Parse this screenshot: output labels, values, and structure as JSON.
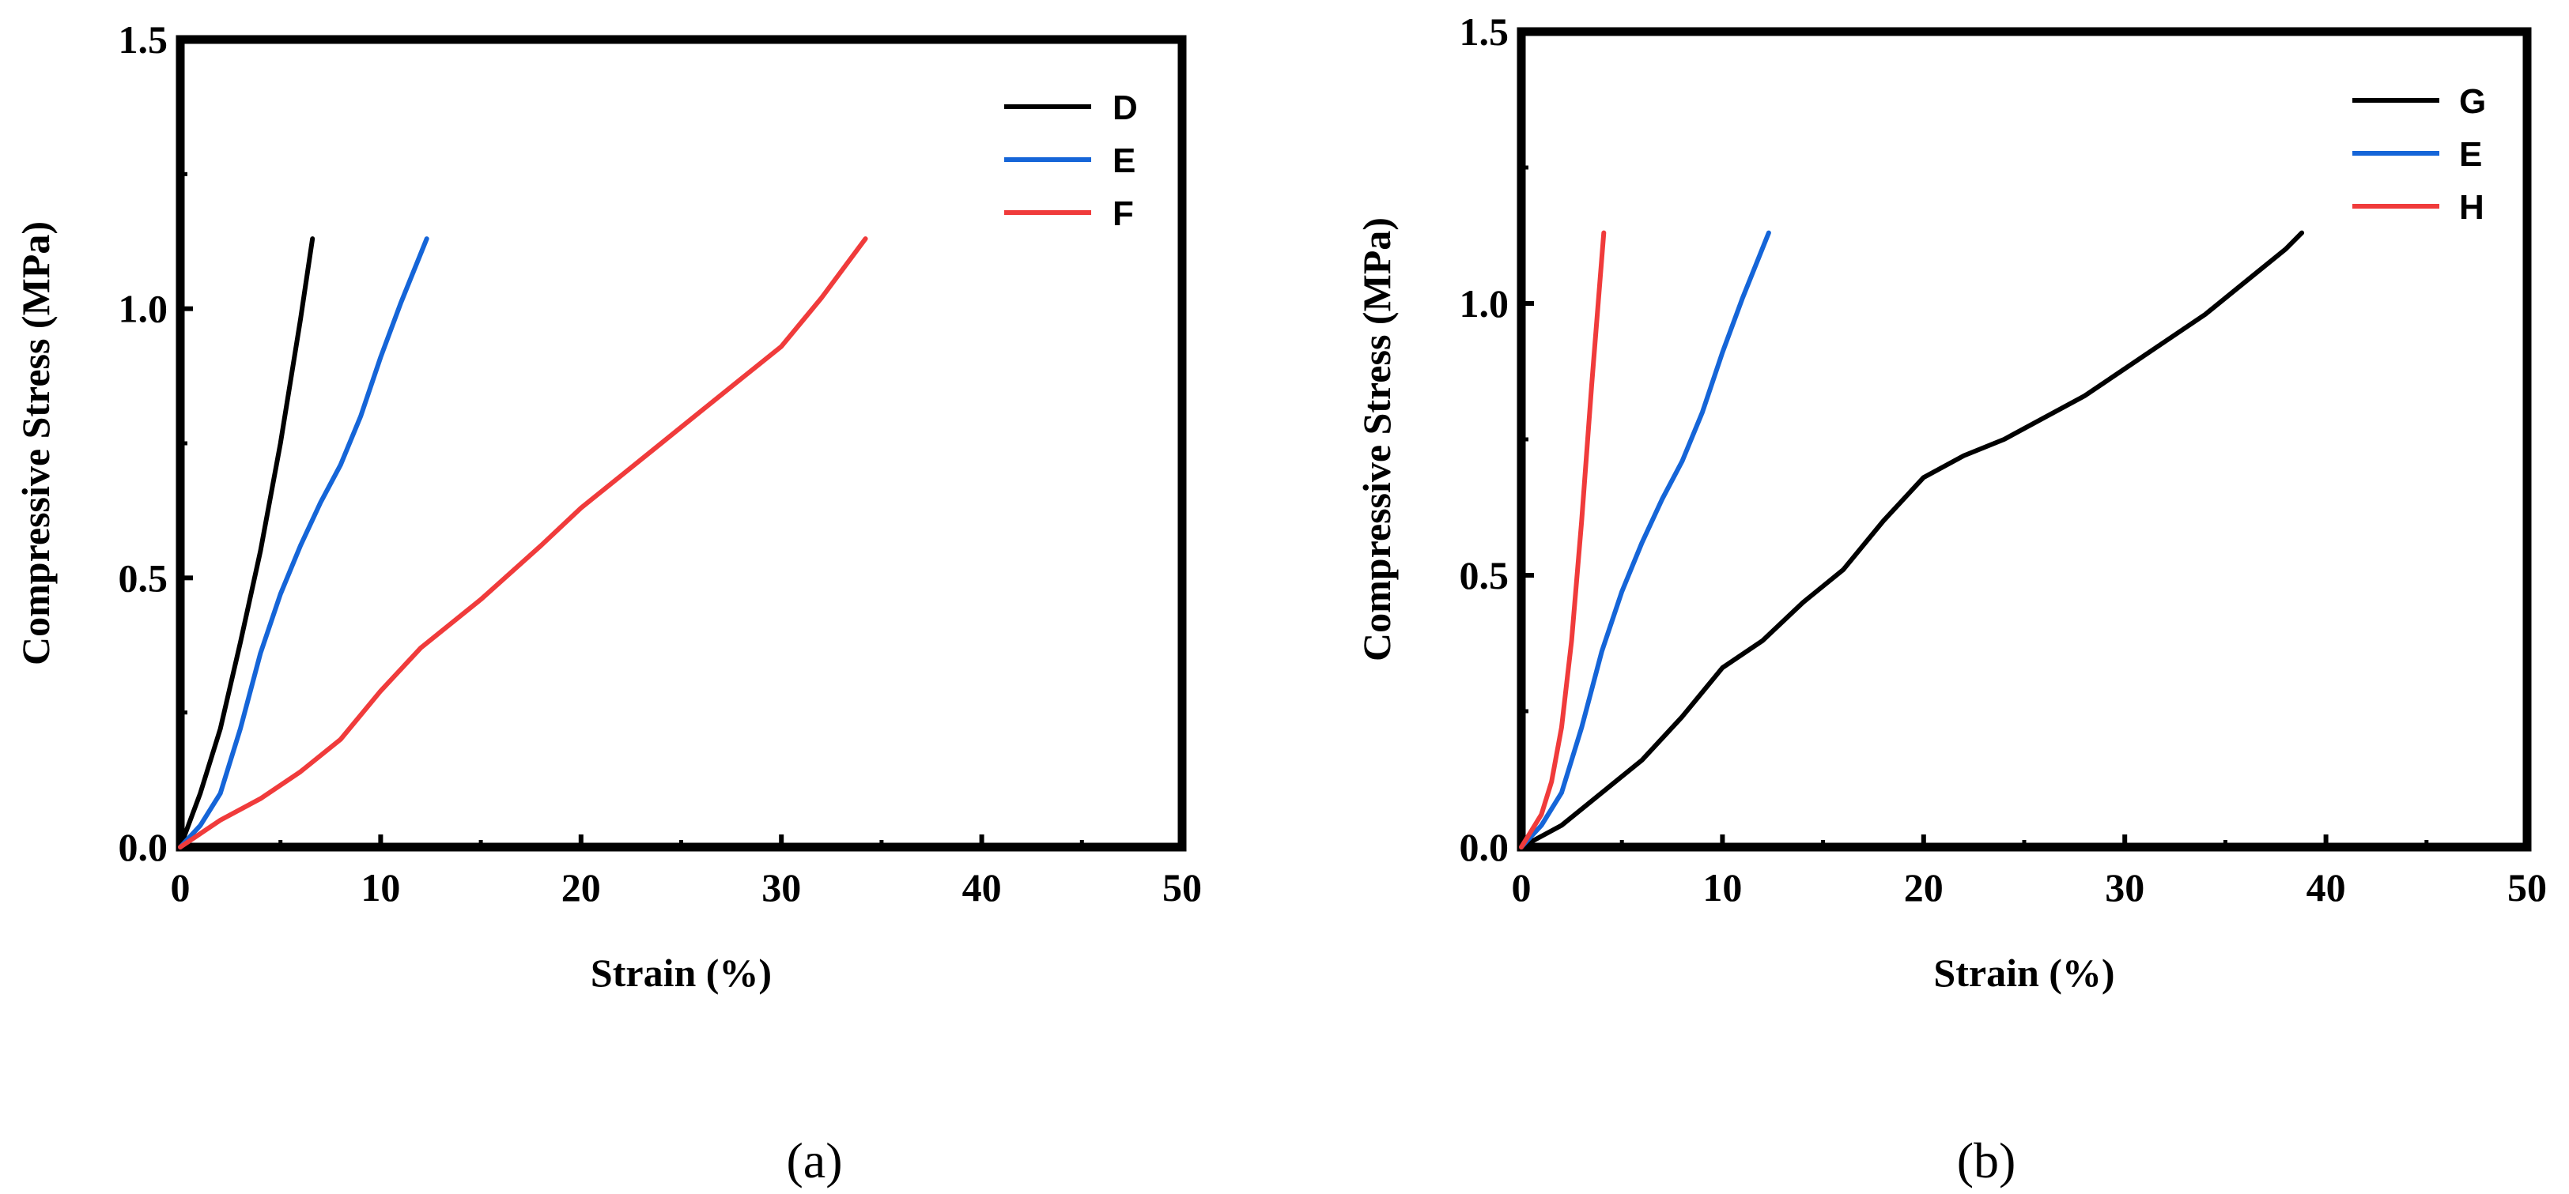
{
  "chart_data": [
    {
      "type": "line",
      "caption": "(a)",
      "xlabel": "Strain (%)",
      "ylabel": "Compressive Stress (MPa)",
      "xlim": [
        0,
        50
      ],
      "ylim": [
        0,
        1.5
      ],
      "xticks": [
        0,
        10,
        20,
        30,
        40,
        50
      ],
      "yticks": [
        0.0,
        0.5,
        1.0,
        1.5
      ],
      "xtick_labels": [
        "0",
        "10",
        "20",
        "30",
        "40",
        "50"
      ],
      "ytick_labels": [
        "0.0",
        "0.5",
        "1.0",
        "1.5"
      ],
      "legend_position": "top-right",
      "series": [
        {
          "name": "D",
          "color": "#000000",
          "x": [
            0,
            1,
            2,
            3,
            4,
            5,
            6,
            6.6
          ],
          "y": [
            0,
            0.1,
            0.22,
            0.38,
            0.55,
            0.75,
            0.98,
            1.13
          ]
        },
        {
          "name": "E",
          "color": "#1565d8",
          "x": [
            0,
            1,
            2,
            3,
            4,
            5,
            6,
            7,
            8,
            9,
            10,
            11,
            12.3
          ],
          "y": [
            0,
            0.04,
            0.1,
            0.22,
            0.36,
            0.47,
            0.56,
            0.64,
            0.71,
            0.8,
            0.91,
            1.01,
            1.13
          ]
        },
        {
          "name": "F",
          "color": "#f03b3b",
          "x": [
            0,
            2,
            4,
            6,
            8,
            10,
            12,
            15,
            18,
            20,
            22,
            24,
            26,
            28,
            30,
            32,
            34.2
          ],
          "y": [
            0,
            0.05,
            0.09,
            0.14,
            0.2,
            0.29,
            0.37,
            0.46,
            0.56,
            0.63,
            0.69,
            0.75,
            0.81,
            0.87,
            0.93,
            1.02,
            1.13
          ]
        }
      ]
    },
    {
      "type": "line",
      "caption": "(b)",
      "xlabel": "Strain (%)",
      "ylabel": "Compressive Stress (MPa)",
      "xlim": [
        0,
        50
      ],
      "ylim": [
        0,
        1.5
      ],
      "xticks": [
        0,
        10,
        20,
        30,
        40,
        50
      ],
      "yticks": [
        0.0,
        0.5,
        1.0,
        1.5
      ],
      "xtick_labels": [
        "0",
        "10",
        "20",
        "30",
        "40",
        "50"
      ],
      "ytick_labels": [
        "0.0",
        "0.5",
        "1.0",
        "1.5"
      ],
      "legend_position": "top-right",
      "series": [
        {
          "name": "G",
          "color": "#000000",
          "x": [
            0,
            2,
            4,
            6,
            8,
            10,
            12,
            14,
            16,
            18,
            20,
            22,
            24,
            26,
            28,
            30,
            32,
            34,
            36,
            38,
            38.8
          ],
          "y": [
            0,
            0.04,
            0.1,
            0.16,
            0.24,
            0.33,
            0.38,
            0.45,
            0.51,
            0.6,
            0.68,
            0.72,
            0.75,
            0.79,
            0.83,
            0.88,
            0.93,
            0.98,
            1.04,
            1.1,
            1.13
          ]
        },
        {
          "name": "E",
          "color": "#1565d8",
          "x": [
            0,
            1,
            2,
            3,
            4,
            5,
            6,
            7,
            8,
            9,
            10,
            11,
            12.3
          ],
          "y": [
            0,
            0.04,
            0.1,
            0.22,
            0.36,
            0.47,
            0.56,
            0.64,
            0.71,
            0.8,
            0.91,
            1.01,
            1.13
          ]
        },
        {
          "name": "H",
          "color": "#f03b3b",
          "x": [
            0,
            0.5,
            1,
            1.5,
            2,
            2.5,
            3,
            3.5,
            4.1
          ],
          "y": [
            0,
            0.03,
            0.06,
            0.12,
            0.22,
            0.38,
            0.6,
            0.85,
            1.13
          ]
        }
      ]
    }
  ]
}
